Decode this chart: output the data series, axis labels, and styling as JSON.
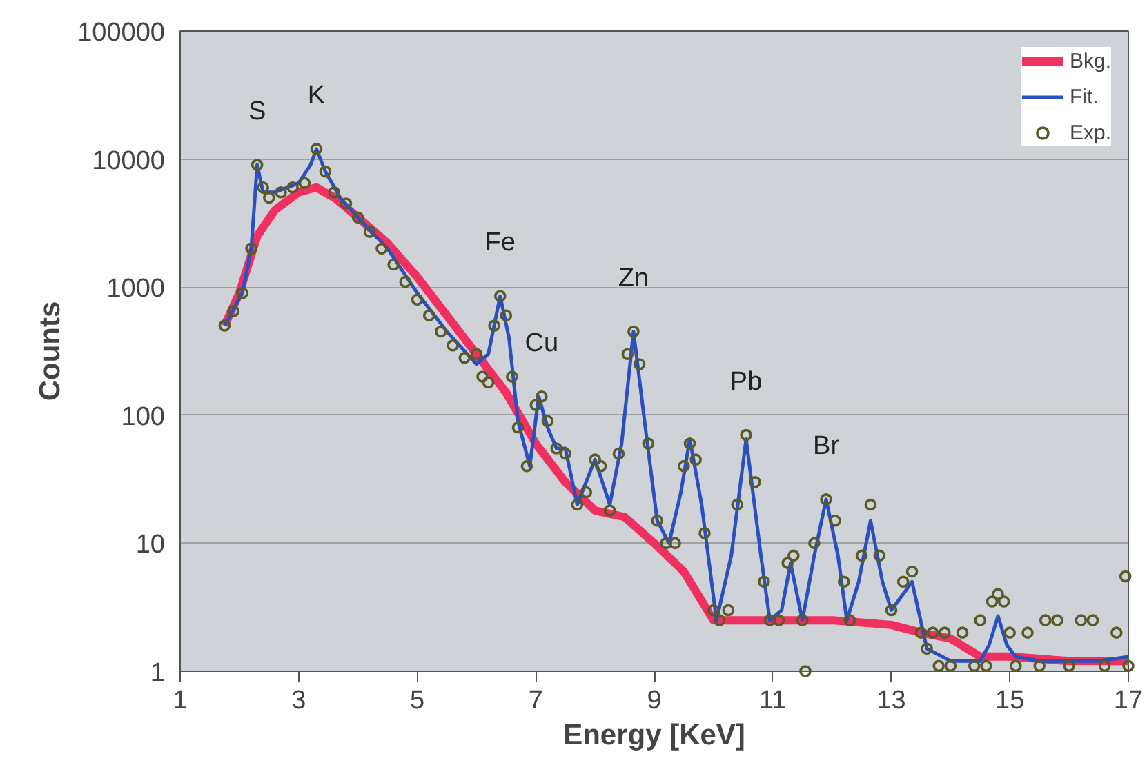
{
  "chart_data": {
    "type": "line",
    "xlabel": "Energy [KeV]",
    "ylabel": "Counts",
    "log": "y",
    "grid": "y",
    "legend": "top right",
    "xlim": [
      1,
      17
    ],
    "xticks": [
      1,
      3,
      5,
      7,
      9,
      11,
      13,
      15,
      17
    ],
    "ylim": [
      1,
      100000
    ],
    "yticks": [
      1,
      10,
      100,
      1000,
      10000,
      100000
    ],
    "annotations": [
      {
        "text": "S",
        "x": 2.3,
        "y": 9000
      },
      {
        "text": "K",
        "x": 3.3,
        "y": 12000
      },
      {
        "text": "Fe",
        "x": 6.4,
        "y": 850
      },
      {
        "text": "Cu",
        "x": 7.1,
        "y": 140
      },
      {
        "text": "Zn",
        "x": 8.65,
        "y": 450
      },
      {
        "text": "Pb",
        "x": 10.55,
        "y": 70
      },
      {
        "text": "Br",
        "x": 11.9,
        "y": 22
      }
    ],
    "series": [
      {
        "name": "Bkg.",
        "color": "#f03060",
        "x": [
          1.75,
          2.0,
          2.3,
          2.6,
          3.0,
          3.3,
          3.6,
          4.0,
          4.5,
          5.0,
          5.5,
          6.0,
          6.5,
          7.0,
          7.5,
          8.0,
          8.5,
          9.0,
          9.5,
          10.0,
          11.0,
          12.0,
          13.0,
          13.5,
          14.0,
          14.5,
          15.0,
          16.0,
          17.0
        ],
        "values": [
          500,
          900,
          2500,
          4000,
          5500,
          6000,
          5000,
          3500,
          2200,
          1200,
          600,
          300,
          150,
          60,
          30,
          18,
          16,
          10,
          6,
          2.5,
          2.5,
          2.5,
          2.3,
          2.0,
          1.8,
          1.3,
          1.3,
          1.2,
          1.2
        ]
      },
      {
        "name": "Fit.",
        "color": "#2850c0",
        "x": [
          1.75,
          2.05,
          2.2,
          2.3,
          2.4,
          2.6,
          3.0,
          3.2,
          3.3,
          3.45,
          3.7,
          4.0,
          4.5,
          5.0,
          5.5,
          6.0,
          6.2,
          6.4,
          6.55,
          6.7,
          6.9,
          7.05,
          7.2,
          7.35,
          7.5,
          7.7,
          8.0,
          8.25,
          8.45,
          8.65,
          8.85,
          9.05,
          9.25,
          9.45,
          9.6,
          9.8,
          10.05,
          10.3,
          10.55,
          10.8,
          10.95,
          11.15,
          11.3,
          11.5,
          11.7,
          11.9,
          12.1,
          12.25,
          12.45,
          12.65,
          12.85,
          13.0,
          13.2,
          13.35,
          13.6,
          14.0,
          14.5,
          14.65,
          14.8,
          14.95,
          15.1,
          15.5,
          16.0,
          16.5,
          17.0
        ],
        "values": [
          500,
          900,
          2000,
          9000,
          5500,
          5500,
          6500,
          9000,
          12000,
          8000,
          5000,
          3500,
          2000,
          900,
          450,
          250,
          300,
          850,
          400,
          90,
          40,
          140,
          80,
          55,
          55,
          20,
          45,
          20,
          60,
          450,
          80,
          15,
          10,
          25,
          65,
          20,
          2.5,
          8,
          65,
          8,
          2.5,
          3,
          7,
          2.5,
          8,
          22,
          8,
          2.5,
          5,
          15,
          5,
          3,
          4,
          5,
          1.5,
          1.2,
          1.2,
          1.6,
          2.7,
          1.6,
          1.3,
          1.2,
          1.2,
          1.2,
          1.3
        ]
      },
      {
        "name": "Exp.",
        "type": "scatter",
        "color": "#5a5a28",
        "marker": "circle",
        "x": [
          1.75,
          1.9,
          2.05,
          2.2,
          2.3,
          2.4,
          2.5,
          2.7,
          2.9,
          3.1,
          3.3,
          3.45,
          3.6,
          3.8,
          4.0,
          4.2,
          4.4,
          4.6,
          4.8,
          5.0,
          5.2,
          5.4,
          5.6,
          5.8,
          6.0,
          6.1,
          6.2,
          6.3,
          6.4,
          6.5,
          6.6,
          6.7,
          6.85,
          7.0,
          7.1,
          7.2,
          7.35,
          7.5,
          7.7,
          7.85,
          8.0,
          8.1,
          8.25,
          8.4,
          8.55,
          8.65,
          8.75,
          8.9,
          9.05,
          9.2,
          9.35,
          9.5,
          9.6,
          9.7,
          9.85,
          10.0,
          10.1,
          10.25,
          10.4,
          10.55,
          10.7,
          10.85,
          10.95,
          11.1,
          11.25,
          11.35,
          11.5,
          11.55,
          11.7,
          11.9,
          12.05,
          12.2,
          12.3,
          12.5,
          12.65,
          12.8,
          13.0,
          13.2,
          13.35,
          13.5,
          13.6,
          13.7,
          13.8,
          13.9,
          14.0,
          14.2,
          14.4,
          14.5,
          14.6,
          14.7,
          14.8,
          14.9,
          15.0,
          15.1,
          15.3,
          15.5,
          15.6,
          15.8,
          16.0,
          16.2,
          16.4,
          16.6,
          16.8,
          16.95,
          17.0
        ],
        "values": [
          500,
          650,
          900,
          2000,
          9000,
          6000,
          5000,
          5500,
          6000,
          6500,
          12000,
          8000,
          5500,
          4500,
          3500,
          2700,
          2000,
          1500,
          1100,
          800,
          600,
          450,
          350,
          280,
          300,
          200,
          180,
          500,
          850,
          600,
          200,
          80,
          40,
          120,
          140,
          90,
          55,
          50,
          20,
          25,
          45,
          40,
          18,
          50,
          300,
          450,
          250,
          60,
          15,
          10,
          10,
          40,
          60,
          45,
          12,
          3,
          2.5,
          3,
          20,
          70,
          30,
          5,
          2.5,
          2.5,
          7,
          8,
          2.5,
          1,
          10,
          22,
          15,
          5,
          2.5,
          8,
          20,
          8,
          3,
          5,
          6,
          2,
          1.5,
          2,
          1.1,
          2,
          1.1,
          2,
          1.1,
          2.5,
          1.1,
          3.5,
          4,
          3.5,
          2,
          1.1,
          2,
          1.1,
          2.5,
          2.5,
          1.1,
          2.5,
          2.5,
          1.1,
          2,
          5.5,
          1.1
        ]
      }
    ]
  }
}
